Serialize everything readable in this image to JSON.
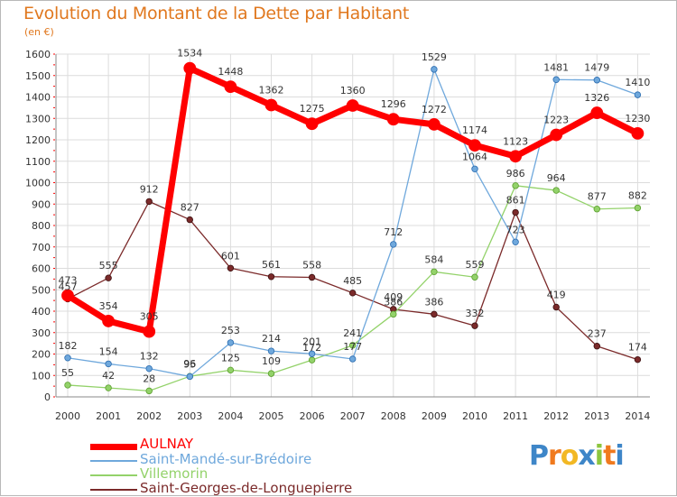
{
  "header": {
    "title": "Evolution du Montant de la Dette par Habitant",
    "unit": "(en €)"
  },
  "logo": {
    "letters": [
      "P",
      "r",
      "o",
      "x",
      "i",
      "t",
      "i"
    ],
    "colors": [
      "#3e86c8",
      "#f07a1e",
      "#f2b824",
      "#3e86c8",
      "#8cc63f",
      "#f07a1e",
      "#3e86c8"
    ]
  },
  "chart_data": {
    "type": "line",
    "x": [
      "2000",
      "2001",
      "2002",
      "2003",
      "2004",
      "2005",
      "2006",
      "2007",
      "2008",
      "2009",
      "2010",
      "2011",
      "2012",
      "2013",
      "2014"
    ],
    "ylim": [
      0,
      1600
    ],
    "yticks": [
      0,
      100,
      200,
      300,
      400,
      500,
      600,
      700,
      800,
      900,
      1000,
      1100,
      1200,
      1300,
      1400,
      1500,
      1600
    ],
    "grid": true,
    "legend_position": "bottom-left",
    "series": [
      {
        "name": "AULNAY",
        "color": "#ff0000",
        "values": [
          473,
          354,
          305,
          1534,
          1448,
          1362,
          1275,
          1360,
          1296,
          1272,
          1174,
          1123,
          1223,
          1326,
          1230
        ],
        "labels": [
          "473",
          "354",
          "305",
          "1534",
          "1448",
          "1362",
          "1275",
          "1360",
          "1296",
          "1272",
          "1174",
          "1123",
          "1223",
          "1326",
          "1230"
        ]
      },
      {
        "name": "Saint-Mandé-sur-Brédoire",
        "color": "#6fa8dc",
        "values": [
          182,
          154,
          132,
          95,
          253,
          214,
          201,
          177,
          712,
          1529,
          1064,
          723,
          1481,
          1479,
          1410
        ],
        "labels": [
          "182",
          "154",
          "132",
          "95",
          "253",
          "214",
          "201",
          "177",
          "712",
          "1529",
          "1064",
          "723",
          "1481",
          "1479",
          "1410"
        ]
      },
      {
        "name": "Villemorin",
        "color": "#93d26a",
        "values": [
          55,
          42,
          28,
          96,
          125,
          109,
          172,
          241,
          386,
          584,
          559,
          986,
          964,
          877,
          882
        ],
        "labels": [
          "55",
          "42",
          "28",
          "96",
          "125",
          "109",
          "172",
          "241",
          "386",
          "584",
          "559",
          "986",
          "964",
          "877",
          "882"
        ]
      },
      {
        "name": "Saint-Georges-de-Longuepierre",
        "color": "#7b2a2a",
        "values": [
          457,
          555,
          912,
          827,
          601,
          561,
          558,
          485,
          409,
          386,
          332,
          861,
          419,
          237,
          174
        ],
        "labels": [
          "457",
          "555",
          "912",
          "827",
          "601",
          "561",
          "558",
          "485",
          "409",
          "386",
          "332",
          "861",
          "419",
          "237",
          "174"
        ]
      }
    ]
  }
}
